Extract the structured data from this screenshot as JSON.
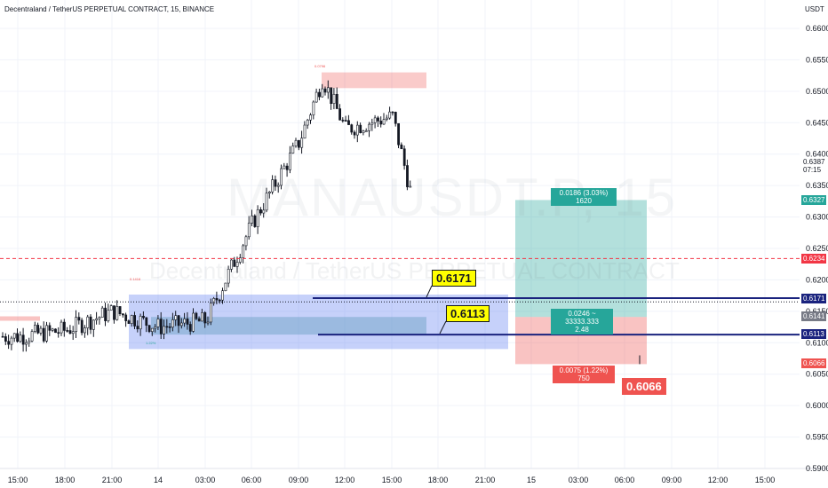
{
  "header": {
    "title": "Decentraland / TetherUS PERPETUAL CONTRACT, 15, BINANCE",
    "unit": "USDT"
  },
  "watermark": {
    "symbol": "MANAUSDT.P, 15",
    "name": "Decentraland / TetherUS PERPETUAL CONTRACT"
  },
  "callouts": {
    "upper": "0.6171",
    "lower": "0.6113",
    "stop": "0.6066"
  },
  "position": {
    "target_label": "0.0186 (3.03%) 1620",
    "mid_label_line1": "0.0246 ~ 33333.333",
    "mid_label_line2": "2.48",
    "stop_label": "0.0075 (1.22%) 750"
  },
  "small_labels": {
    "top_zone": "0.0796",
    "left_zone": "0.1416",
    "low_zone": "1.22%"
  },
  "price_tags": {
    "current": "0.6387",
    "countdown": "07:15",
    "target": "0.6327",
    "red_line": "0.6234",
    "entry_blue": "0.6171",
    "entry": "0.6141",
    "lower_blue": "0.6113",
    "stop": "0.6066"
  },
  "colors": {
    "up_candle": "#ffffff",
    "down_candle": "#131722",
    "target_zone": "#26a69a",
    "stop_zone": "#ef5350",
    "blue_zone": "#5b7cf0",
    "blue_line": "#1a237e",
    "red_dashed": "#f23645",
    "callout_bg": "#ffff00"
  },
  "chart_data": {
    "type": "candlestick",
    "title": "Decentraland / TetherUS PERPETUAL CONTRACT, 15, BINANCE",
    "xlabel": "",
    "ylabel": "USDT",
    "ylim": [
      0.59,
      0.66
    ],
    "y_ticks": [
      "0.6600",
      "0.6550",
      "0.6500",
      "0.6450",
      "0.6400",
      "0.6350",
      "0.6300",
      "0.6250",
      "0.6200",
      "0.6150",
      "0.6100",
      "0.6050",
      "0.6000",
      "0.5950",
      "0.5900"
    ],
    "x_ticks": [
      "15:00",
      "18:00",
      "21:00",
      "14",
      "03:00",
      "06:00",
      "09:00",
      "12:00",
      "15:00",
      "18:00",
      "21:00",
      "15",
      "03:00",
      "06:00",
      "09:00",
      "12:00",
      "15:00"
    ],
    "anchor_points": [
      {
        "time": "15:00",
        "price": 0.611
      },
      {
        "time": "18:00",
        "price": 0.612
      },
      {
        "time": "21:00",
        "price": 0.615
      },
      {
        "time": "14",
        "price": 0.6125
      },
      {
        "time": "03:00",
        "price": 0.6135
      },
      {
        "time": "06:00",
        "price": 0.629
      },
      {
        "time": "09:00",
        "price": 0.642
      },
      {
        "time": "10:30",
        "price": 0.652
      },
      {
        "time": "12:00",
        "price": 0.644
      },
      {
        "time": "15:00",
        "price": 0.646
      },
      {
        "time": "15:45",
        "price": 0.6335
      }
    ],
    "horizontal_levels": [
      {
        "label": "0.6171",
        "price": 0.6171
      },
      {
        "label": "0.6113",
        "price": 0.6113
      },
      {
        "label": "0.6234",
        "price": 0.6234
      }
    ],
    "position": {
      "entry": 0.6141,
      "target": 0.6327,
      "stop": 0.6066
    }
  }
}
